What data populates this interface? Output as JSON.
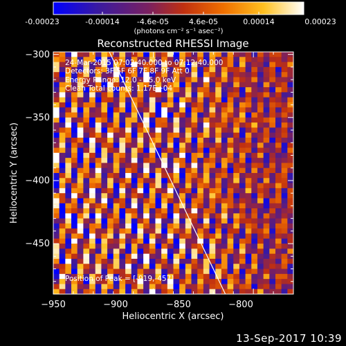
{
  "colorbar": {
    "ticks": [
      "-0.00023",
      "-0.00014",
      "-4.6e-05",
      "4.6e-05",
      "0.00014",
      "0.00023"
    ],
    "unit_label": "(photons cm⁻² s⁻¹ asec⁻²)"
  },
  "annotation": {
    "time_range": "24-Mar-2015 07:02:40.000 to 07:12:40.000",
    "detectors": "Detectors: 3F 5F 6F 7F 8F 9F  Att 0",
    "energy": "Energy Range: 12.0 - 25.0 keV",
    "method": "Clean     Total counts: 1.17E+04",
    "peak": "Position of Peak = [-919,-457]"
  },
  "footer": {
    "timestamp": "13-Sep-2017 10:39"
  },
  "chart_data": {
    "type": "heatmap",
    "title": "Reconstructed RHESSI Image",
    "xlabel": "Heliocentric X (arcsec)",
    "ylabel": "Heliocentric Y (arcsec)",
    "xlim": [
      -950,
      -830
    ],
    "ylim": [
      -490,
      -298
    ],
    "xticks": [
      -950,
      -900,
      -850,
      -800
    ],
    "yticks": [
      -300,
      -350,
      -400,
      -450
    ],
    "x_tick_labels": [
      "−950",
      "−900",
      "−850",
      "−800"
    ],
    "y_tick_labels": [
      "−300",
      "−350",
      "−400",
      "−450"
    ],
    "color_range": [
      -0.00023,
      0.00023
    ],
    "peak_position": [
      -919,
      -457
    ],
    "limb_line": [
      [
        -922,
        -298
      ],
      [
        -864,
        -490
      ]
    ],
    "pixel_grid": [
      40,
      48
    ],
    "colormap": [
      "#0000ff",
      "#3a1aa0",
      "#7a2060",
      "#c03010",
      "#f07000",
      "#ffc020",
      "#ffffff"
    ]
  }
}
